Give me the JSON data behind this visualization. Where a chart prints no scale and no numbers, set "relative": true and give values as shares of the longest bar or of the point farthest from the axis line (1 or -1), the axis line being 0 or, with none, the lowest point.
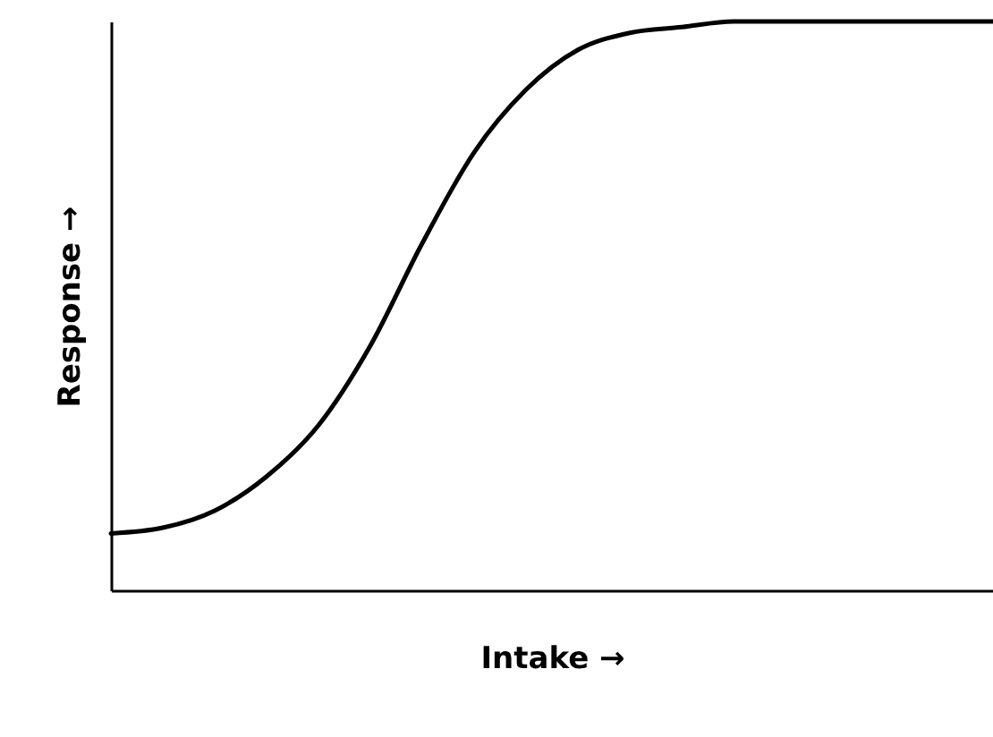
{
  "chart_data": {
    "type": "line",
    "relative": true,
    "xlabel": "Intake →",
    "ylabel": "Response →",
    "categories": [
      null,
      null,
      null,
      null,
      null,
      null,
      null,
      null,
      null,
      null,
      null,
      null,
      null,
      null,
      null,
      null,
      null,
      null
    ],
    "series": [
      {
        "color": "#000000",
        "values": [
          0.1,
          0.11,
          0.14,
          0.2,
          0.29,
          0.43,
          0.61,
          0.77,
          0.88,
          0.95,
          0.98,
          0.99,
          1,
          1,
          1,
          1,
          1,
          1
        ]
      }
    ],
    "marker": "none",
    "grid": false
  }
}
